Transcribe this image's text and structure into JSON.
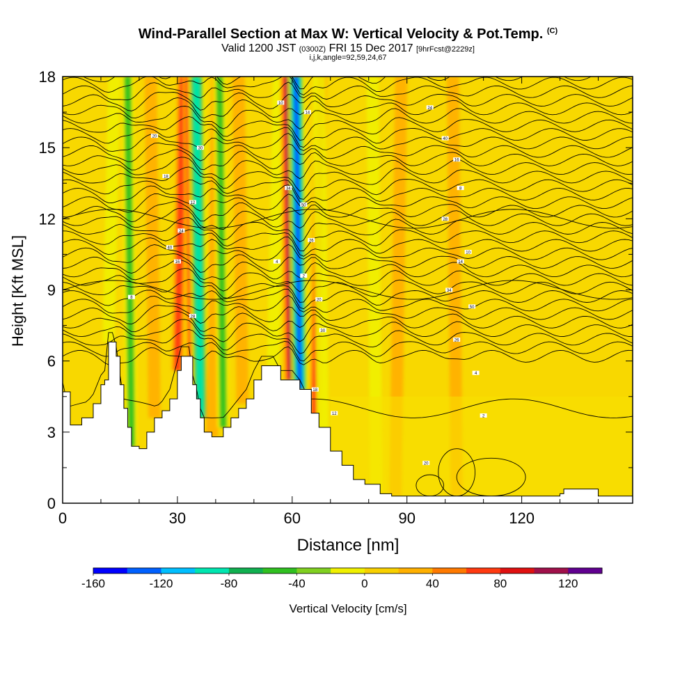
{
  "header": {
    "title": "Wind-Parallel Section at Max W: Vertical Velocity & Pot.Temp.",
    "title_mark": "(C)",
    "sub_valid": "Valid 1200 JST",
    "sub_utc": "(0300Z)",
    "sub_date": "FRI 15 Dec 2017",
    "sub_fcst": "[9hrFcst@2229z]",
    "sub_indices": "i,j,k,angle=92,59,24,67"
  },
  "chart_data": {
    "type": "heatmap",
    "xlabel": "Distance [nm]",
    "ylabel": "Height [Kft MSL]",
    "xlim": [
      0,
      149
    ],
    "ylim": [
      0,
      18
    ],
    "x_ticks": [
      0,
      30,
      60,
      90,
      120
    ],
    "y_ticks": [
      0,
      3,
      6,
      9,
      12,
      15,
      18
    ],
    "colorbar": {
      "label": "Vertical Velocity [cm/s]",
      "min": -160,
      "max": 140,
      "step": 20,
      "tick_labels": [
        -160,
        -120,
        -80,
        -40,
        0,
        40,
        80,
        120
      ],
      "colors": [
        "#0000ff",
        "#0060ff",
        "#00bfff",
        "#00e6b0",
        "#10b050",
        "#30c020",
        "#80d020",
        "#f0f000",
        "#f8d000",
        "#ffb000",
        "#ff7a00",
        "#ff3a10",
        "#e01010",
        "#a0104a",
        "#600090"
      ]
    },
    "terrain": [
      [
        0,
        4.7
      ],
      [
        2,
        3.3
      ],
      [
        5,
        3.6
      ],
      [
        8,
        4.2
      ],
      [
        10,
        5.0
      ],
      [
        11,
        5.2
      ],
      [
        12,
        6.8
      ],
      [
        13,
        6.8
      ],
      [
        14,
        6.2
      ],
      [
        15,
        5.0
      ],
      [
        16,
        4.0
      ],
      [
        17,
        3.2
      ],
      [
        18,
        2.4
      ],
      [
        20,
        2.3
      ],
      [
        22,
        3.0
      ],
      [
        24,
        3.6
      ],
      [
        26,
        3.9
      ],
      [
        28,
        4.4
      ],
      [
        30,
        5.6
      ],
      [
        31,
        6.2
      ],
      [
        33,
        6.2
      ],
      [
        34,
        5.0
      ],
      [
        35,
        4.4
      ],
      [
        36,
        3.6
      ],
      [
        37,
        3.0
      ],
      [
        39,
        2.8
      ],
      [
        42,
        3.2
      ],
      [
        44,
        3.6
      ],
      [
        46,
        4.0
      ],
      [
        48,
        4.4
      ],
      [
        50,
        5.2
      ],
      [
        52,
        5.8
      ],
      [
        55,
        5.8
      ],
      [
        57,
        5.2
      ],
      [
        60,
        5.2
      ],
      [
        62,
        4.8
      ],
      [
        65,
        3.8
      ],
      [
        67,
        3.2
      ],
      [
        70,
        2.2
      ],
      [
        73,
        1.6
      ],
      [
        76,
        1.0
      ],
      [
        79,
        0.8
      ],
      [
        83,
        0.4
      ],
      [
        86,
        0.3
      ],
      [
        100,
        0.3
      ],
      [
        110,
        0.3
      ],
      [
        120,
        0.3
      ],
      [
        130,
        0.4
      ],
      [
        131,
        0.6
      ],
      [
        136,
        0.6
      ],
      [
        140,
        0.3
      ],
      [
        146,
        0.3
      ],
      [
        149,
        0.5
      ]
    ],
    "updrafts_downdrafts": [
      {
        "x": 12,
        "w": -40
      },
      {
        "x": 18,
        "w": -60
      },
      {
        "x": 24,
        "w": 40
      },
      {
        "x": 30,
        "w": 60
      },
      {
        "x": 34,
        "w": 80
      },
      {
        "x": 36,
        "w": -100
      },
      {
        "x": 39,
        "w": 40
      },
      {
        "x": 42,
        "w": -80
      },
      {
        "x": 47,
        "w": 40
      },
      {
        "x": 55,
        "w": -40
      },
      {
        "x": 60,
        "w": 100
      },
      {
        "x": 62,
        "w": -160
      },
      {
        "x": 66,
        "w": 60
      },
      {
        "x": 68,
        "w": -40
      },
      {
        "x": 82,
        "w": -40
      },
      {
        "x": 87,
        "w": 40
      },
      {
        "x": 103,
        "w": 40
      }
    ],
    "isentrope_labels": [
      "20",
      "30",
      "18",
      "12",
      "24",
      "40",
      "16",
      "8",
      "28",
      "10",
      "14",
      "34",
      "50",
      "26",
      "4",
      "2"
    ]
  }
}
